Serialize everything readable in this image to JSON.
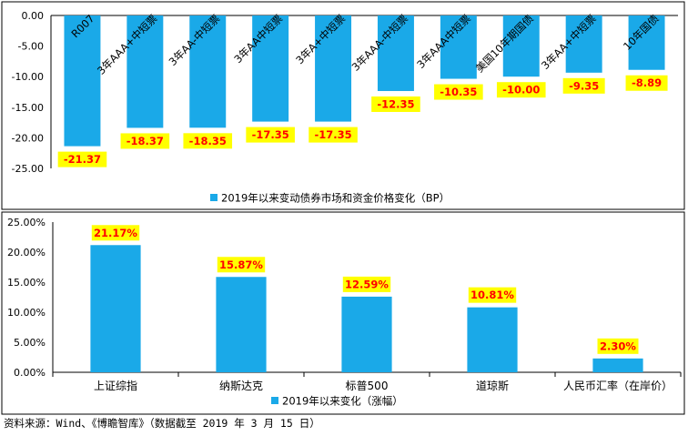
{
  "chart_data": [
    {
      "type": "bar",
      "categories": [
        "R007",
        "3年AAA+中短票",
        "3年AA-中短票",
        "3年AA中短票",
        "3年A+中短票",
        "3年AAA-中短票",
        "3年AAA中短票",
        "美国10年期国债",
        "3年AA+中短票",
        "10年国债"
      ],
      "series": [
        {
          "name": "2019年以来变动债券市场和资金价格变化（BP）",
          "values": [
            -21.37,
            -18.37,
            -18.35,
            -17.35,
            -17.35,
            -12.35,
            -10.35,
            -10.0,
            -9.35,
            -8.89
          ]
        }
      ],
      "data_labels": [
        "-21.37",
        "-18.37",
        "-18.35",
        "-17.35",
        "-17.35",
        "-12.35",
        "-10.35",
        "-10.00",
        "-9.35",
        "-8.89"
      ],
      "y_ticks": [
        "0.00",
        "-5.00",
        "-10.00",
        "-15.00",
        "-20.00",
        "-25.00"
      ],
      "ylim": [
        -25,
        0
      ],
      "grid": false,
      "legend_position": "bottom",
      "bar_color": "#1AA9E8",
      "label_bg_color": "#FFFF00",
      "label_text_color": "#FF0000"
    },
    {
      "type": "bar",
      "categories": [
        "上证综指",
        "纳斯达克",
        "标普500",
        "道琼斯",
        "人民币汇率（在岸价）"
      ],
      "series": [
        {
          "name": "2019年以来变化（涨幅）",
          "values": [
            21.17,
            15.87,
            12.59,
            10.81,
            2.3
          ]
        }
      ],
      "data_labels": [
        "21.17%",
        "15.87%",
        "12.59%",
        "10.81%",
        "2.30%"
      ],
      "y_ticks": [
        "0.00%",
        "5.00%",
        "10.00%",
        "15.00%",
        "20.00%",
        "25.00%"
      ],
      "ylim": [
        0,
        25
      ],
      "grid": false,
      "legend_position": "bottom",
      "bar_color": "#1AA9E8",
      "label_bg_color": "#FFFF00",
      "label_text_color": "#FF0000"
    }
  ],
  "footer": {
    "source": "资料来源：Wind、《博瞻智库》（数据截至 2019 年 3 月 15 日）"
  }
}
